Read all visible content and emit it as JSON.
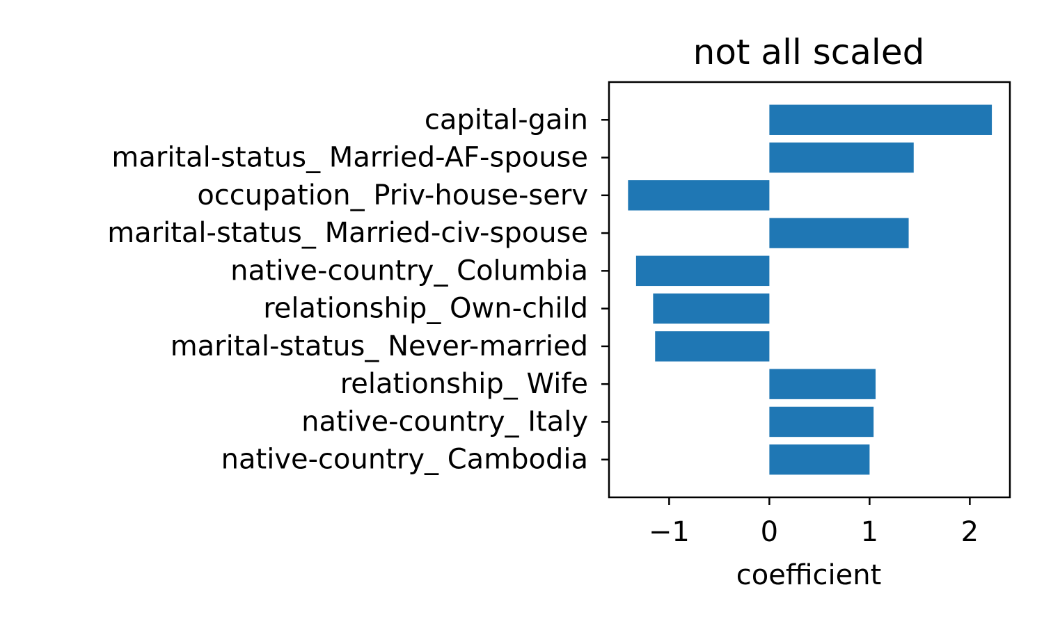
{
  "chart_data": {
    "type": "bar",
    "orientation": "horizontal",
    "title": "not all scaled",
    "xlabel": "coefficient",
    "ylabel": "",
    "categories": [
      "capital-gain",
      "marital-status_ Married-AF-spouse",
      "occupation_ Priv-house-serv",
      "marital-status_ Married-civ-spouse",
      "native-country_ Columbia",
      "relationship_ Own-child",
      "marital-status_ Never-married",
      "relationship_ Wife",
      "native-country_ Italy",
      "native-country_ Cambodia"
    ],
    "values": [
      2.22,
      1.44,
      -1.41,
      1.39,
      -1.33,
      -1.16,
      -1.14,
      1.06,
      1.04,
      1.0
    ],
    "xlim": [
      -1.6,
      2.4
    ],
    "xticks": [
      -1,
      0,
      1,
      2
    ],
    "xtick_labels": [
      "−1",
      "0",
      "1",
      "2"
    ],
    "bar_color": "#1f77b4",
    "grid": false,
    "legend": "none"
  }
}
